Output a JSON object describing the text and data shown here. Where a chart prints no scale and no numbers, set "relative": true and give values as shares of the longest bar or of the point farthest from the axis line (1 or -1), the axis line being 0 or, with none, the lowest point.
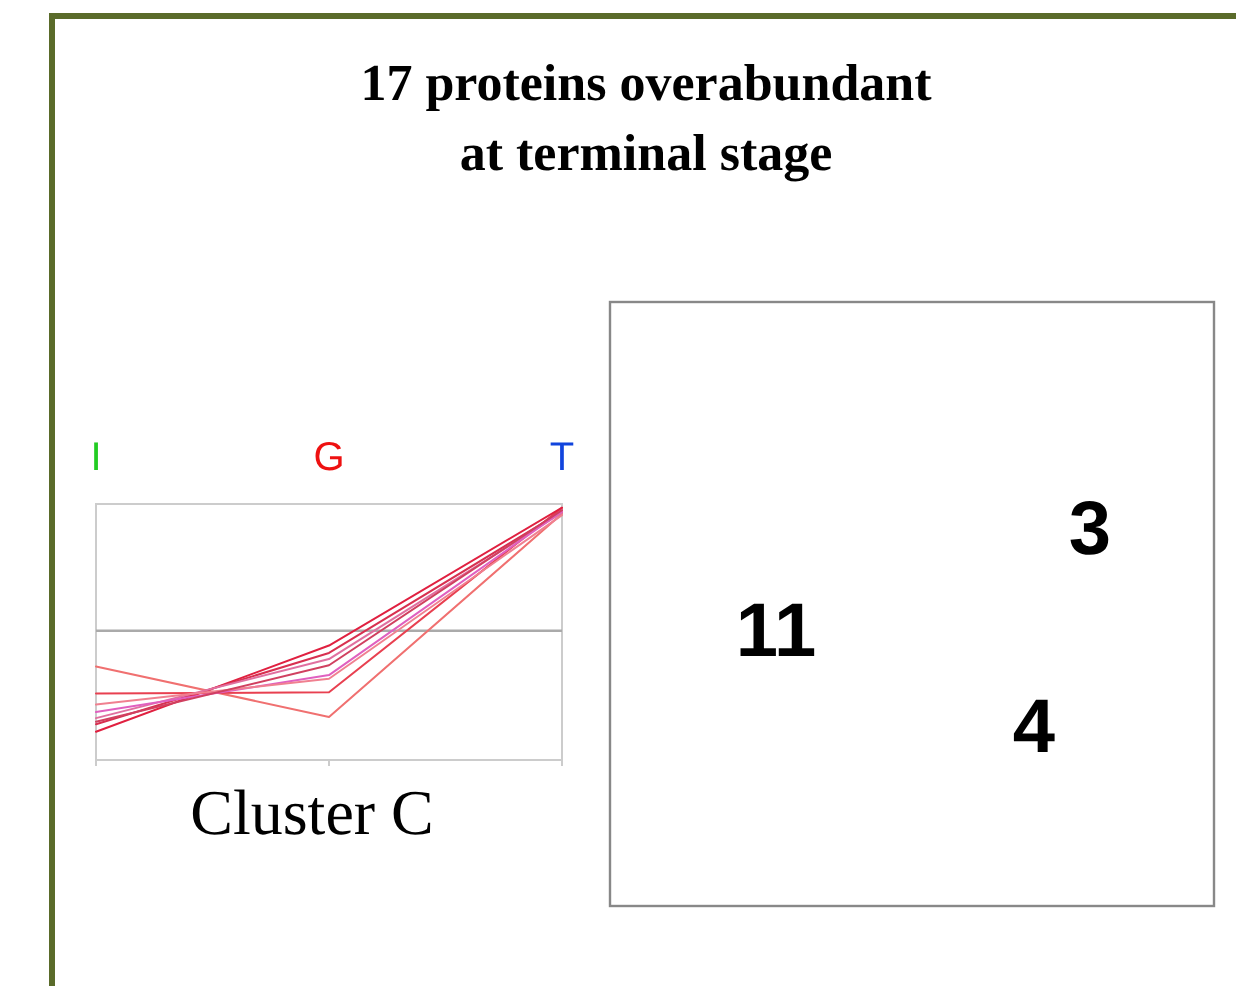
{
  "chart_data": [
    {
      "type": "line",
      "title": "17 proteins overabundant\nat terminal stage",
      "xlabel": "Cluster C",
      "categories": [
        "I",
        "G",
        "T"
      ],
      "relative": true,
      "series": [
        {
          "color": "#f07070",
          "values": [
            -0.29,
            -0.7,
            0.95
          ]
        },
        {
          "color": "#e84050",
          "values": [
            -0.51,
            -0.5,
            1.0
          ]
        },
        {
          "color": "#e02040",
          "values": [
            -0.82,
            -0.12,
            1.0
          ]
        },
        {
          "color": "#d83050",
          "values": [
            -0.76,
            -0.18,
            0.97
          ]
        },
        {
          "color": "#e070a0",
          "values": [
            -0.71,
            -0.23,
            0.96
          ]
        },
        {
          "color": "#e060c0",
          "values": [
            -0.66,
            -0.36,
            0.97
          ]
        },
        {
          "color": "#f08090",
          "values": [
            -0.6,
            -0.39,
            0.94
          ]
        },
        {
          "color": "#d04060",
          "values": [
            -0.74,
            -0.28,
            0.98
          ]
        }
      ]
    },
    {
      "type": "other",
      "annotations": [
        "11",
        "3",
        "4"
      ]
    }
  ]
}
